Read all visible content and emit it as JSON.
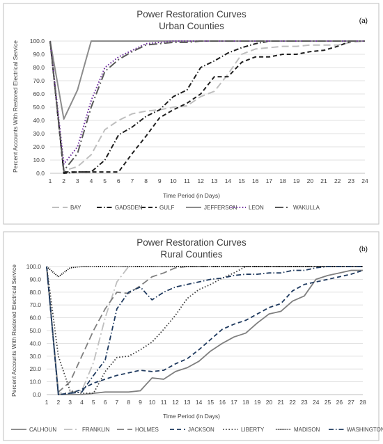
{
  "chart_data": [
    {
      "type": "line",
      "title": "Power Restoration Curves",
      "subtitle": "Urban Counties",
      "panel_label": "(a)",
      "xlabel": "Time Period (in Days)",
      "ylabel": "Percent Accounts With Restored  Electrical Service",
      "x": [
        1,
        2,
        3,
        4,
        5,
        6,
        7,
        8,
        9,
        10,
        11,
        12,
        13,
        14,
        15,
        16,
        17,
        18,
        19,
        20,
        21,
        22,
        23,
        24
      ],
      "ylim": [
        0,
        100
      ],
      "ytick_step": 10,
      "grid": true,
      "legend_position": "bottom",
      "series": [
        {
          "name": "BAY",
          "color": "#bfbfbf",
          "dash": "long-dash",
          "values": [
            100,
            2,
            5,
            14,
            33,
            40,
            45,
            47,
            48,
            50,
            51,
            58,
            62,
            75,
            90,
            94,
            95,
            96,
            96,
            97,
            97,
            97,
            99,
            100
          ]
        },
        {
          "name": "GADSDEN",
          "color": "#1f1f1f",
          "dash": "dash-dot",
          "values": [
            100,
            0,
            1,
            1,
            10,
            29,
            35,
            43,
            48,
            58,
            63,
            80,
            85,
            91,
            95,
            98,
            100,
            100,
            100,
            100,
            100,
            100,
            100,
            100
          ]
        },
        {
          "name": "GULF",
          "color": "#1f1f1f",
          "dash": "dash",
          "values": [
            100,
            1,
            1,
            1,
            1,
            1,
            15,
            28,
            42,
            48,
            53,
            60,
            73,
            73,
            84,
            88,
            88,
            90,
            90,
            92,
            93,
            96,
            100,
            100
          ]
        },
        {
          "name": "JEFFERSON",
          "color": "#8c8c8c",
          "dash": "solid",
          "values": [
            100,
            41,
            63,
            100,
            100,
            100,
            100,
            100,
            100,
            100,
            100,
            100,
            100,
            100,
            100,
            100,
            100,
            100,
            100,
            100,
            100,
            100,
            100,
            100
          ]
        },
        {
          "name": "LEON",
          "color": "#7030a0",
          "dash": "dot",
          "values": [
            100,
            7,
            20,
            55,
            80,
            88,
            93,
            98,
            99,
            100,
            100,
            100,
            100,
            100,
            100,
            100,
            100,
            100,
            100,
            100,
            100,
            100,
            100,
            100
          ]
        },
        {
          "name": "WAKULLA",
          "color": "#595959",
          "dash": "long-dash-dot",
          "values": [
            100,
            2,
            15,
            50,
            77,
            86,
            92,
            97,
            98,
            99,
            99,
            100,
            100,
            100,
            100,
            100,
            100,
            100,
            100,
            100,
            100,
            100,
            100,
            100
          ]
        }
      ]
    },
    {
      "type": "line",
      "title": "Power Restoration Curves",
      "subtitle": "Rural Counties",
      "panel_label": "(b)",
      "xlabel": "Time Period (in Days)",
      "ylabel": "Percent Accounts With Restored Electrical Service",
      "x": [
        1,
        2,
        3,
        4,
        5,
        6,
        7,
        8,
        9,
        10,
        11,
        12,
        13,
        14,
        15,
        16,
        17,
        18,
        19,
        20,
        21,
        22,
        23,
        24,
        25,
        26,
        27,
        28
      ],
      "ylim": [
        0,
        100
      ],
      "ytick_step": 10,
      "grid": true,
      "legend_position": "bottom",
      "series": [
        {
          "name": "CALHOUN",
          "color": "#7f7f7f",
          "dash": "solid",
          "values": [
            100,
            0,
            0,
            0,
            1,
            2,
            2,
            2,
            3,
            13,
            12,
            18,
            21,
            26,
            34,
            40,
            45,
            48,
            56,
            63,
            65,
            73,
            77,
            90,
            93,
            95,
            97,
            97
          ]
        },
        {
          "name": "FRANKLIN",
          "color": "#bfbfbf",
          "dash": "long-dash-dot",
          "values": [
            100,
            1,
            2,
            3,
            25,
            60,
            88,
            100,
            100,
            100,
            100,
            100,
            100,
            100,
            100,
            100,
            100,
            100,
            100,
            100,
            100,
            100,
            100,
            100,
            100,
            100,
            100,
            100
          ]
        },
        {
          "name": "HOLMES",
          "color": "#7f7f7f",
          "dash": "long-dash",
          "values": [
            100,
            2,
            10,
            30,
            50,
            67,
            80,
            79,
            85,
            92,
            95,
            99,
            100,
            100,
            100,
            100,
            100,
            100,
            100,
            100,
            100,
            100,
            100,
            100,
            100,
            100,
            100,
            100
          ]
        },
        {
          "name": "JACKSON",
          "color": "#1f3a5f",
          "dash": "dash",
          "values": [
            100,
            0,
            1,
            4,
            9,
            12,
            15,
            17,
            19,
            18,
            19,
            24,
            28,
            35,
            43,
            51,
            55,
            58,
            63,
            68,
            71,
            81,
            86,
            88,
            90,
            92,
            94,
            97
          ]
        },
        {
          "name": "LIBERTY",
          "color": "#404040",
          "dash": "dot",
          "values": [
            100,
            30,
            3,
            1,
            1,
            18,
            29,
            30,
            35,
            41,
            51,
            62,
            75,
            82,
            86,
            91,
            95,
            100,
            100,
            100,
            100,
            100,
            100,
            100,
            100,
            100,
            100,
            100
          ]
        },
        {
          "name": "MADISON",
          "color": "#000000",
          "dash": "dense-dot",
          "values": [
            100,
            92,
            99,
            100,
            100,
            100,
            100,
            100,
            100,
            100,
            100,
            100,
            100,
            100,
            100,
            100,
            100,
            100,
            100,
            100,
            100,
            100,
            100,
            100,
            100,
            100,
            100,
            100
          ]
        },
        {
          "name": "WASHINGTON",
          "color": "#1f3a5f",
          "dash": "dash-dot",
          "values": [
            100,
            0,
            1,
            2,
            15,
            27,
            67,
            80,
            84,
            74,
            80,
            84,
            86,
            88,
            90,
            91,
            93,
            94,
            94,
            95,
            95,
            97,
            97,
            99,
            100,
            100,
            100,
            100
          ]
        }
      ]
    }
  ]
}
